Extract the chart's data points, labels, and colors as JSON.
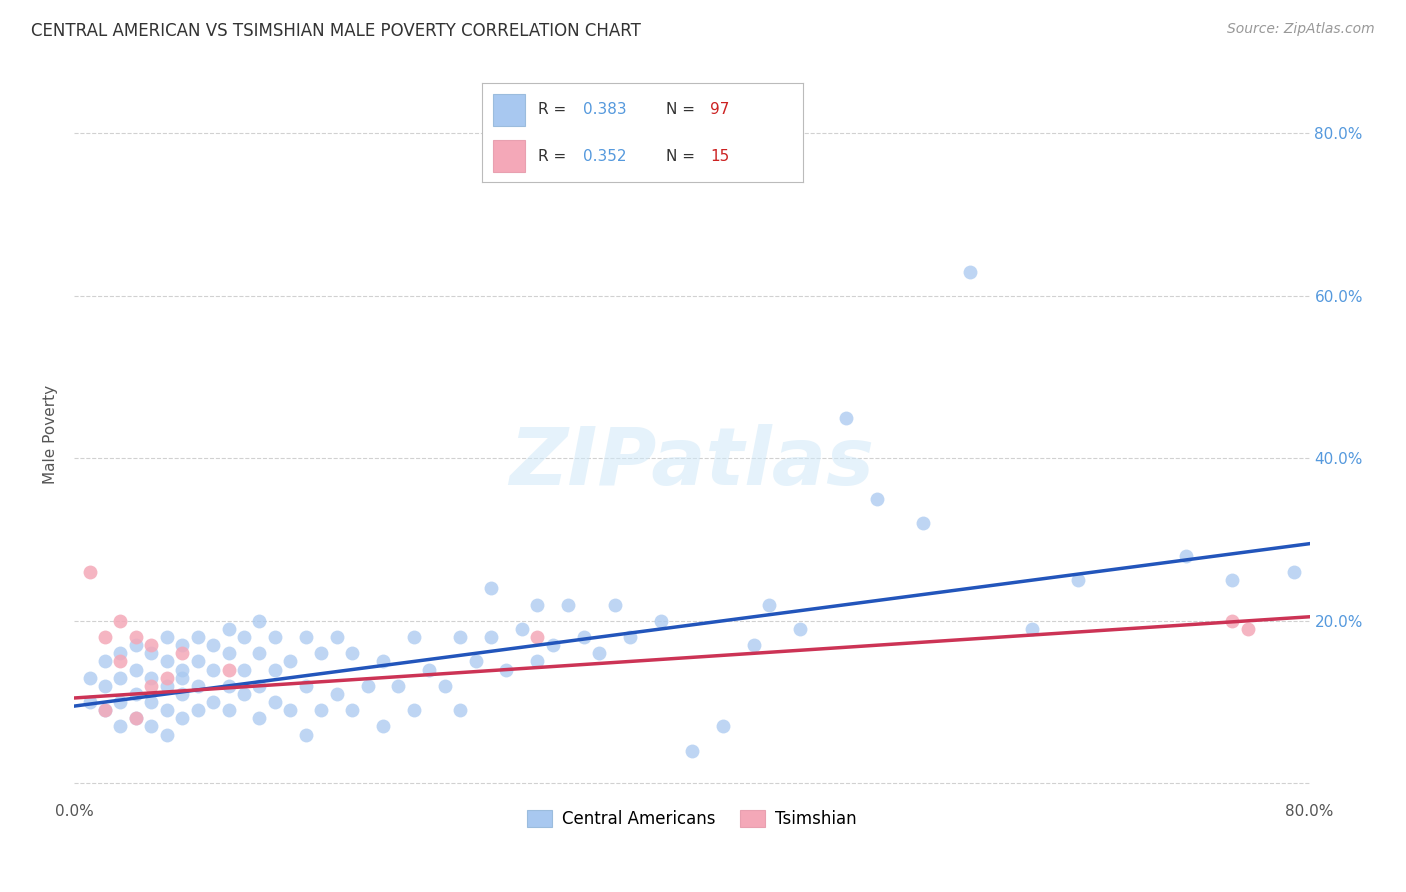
{
  "title": "CENTRAL AMERICAN VS TSIMSHIAN MALE POVERTY CORRELATION CHART",
  "source": "Source: ZipAtlas.com",
  "ylabel": "Male Poverty",
  "xlim": [
    0.0,
    0.8
  ],
  "ylim": [
    -0.02,
    0.88
  ],
  "yticks": [
    0.0,
    0.2,
    0.4,
    0.6,
    0.8
  ],
  "r_blue": 0.383,
  "n_blue": 97,
  "r_pink": 0.352,
  "n_pink": 15,
  "blue_color": "#a8c8f0",
  "pink_color": "#f4a8b8",
  "line_blue": "#2255bb",
  "line_pink": "#cc3355",
  "bg_color": "#ffffff",
  "grid_color": "#cccccc",
  "watermark": "ZIPatlas",
  "blue_scatter_x": [
    0.01,
    0.01,
    0.02,
    0.02,
    0.02,
    0.03,
    0.03,
    0.03,
    0.03,
    0.04,
    0.04,
    0.04,
    0.04,
    0.05,
    0.05,
    0.05,
    0.05,
    0.06,
    0.06,
    0.06,
    0.06,
    0.06,
    0.07,
    0.07,
    0.07,
    0.07,
    0.07,
    0.08,
    0.08,
    0.08,
    0.08,
    0.09,
    0.09,
    0.09,
    0.1,
    0.1,
    0.1,
    0.1,
    0.11,
    0.11,
    0.11,
    0.12,
    0.12,
    0.12,
    0.12,
    0.13,
    0.13,
    0.13,
    0.14,
    0.14,
    0.15,
    0.15,
    0.15,
    0.16,
    0.16,
    0.17,
    0.17,
    0.18,
    0.18,
    0.19,
    0.2,
    0.2,
    0.21,
    0.22,
    0.22,
    0.23,
    0.24,
    0.25,
    0.25,
    0.26,
    0.27,
    0.27,
    0.28,
    0.29,
    0.3,
    0.3,
    0.31,
    0.32,
    0.33,
    0.34,
    0.35,
    0.36,
    0.38,
    0.4,
    0.42,
    0.44,
    0.45,
    0.47,
    0.5,
    0.52,
    0.55,
    0.58,
    0.62,
    0.65,
    0.72,
    0.75,
    0.79
  ],
  "blue_scatter_y": [
    0.1,
    0.13,
    0.09,
    0.12,
    0.15,
    0.07,
    0.1,
    0.13,
    0.16,
    0.08,
    0.11,
    0.14,
    0.17,
    0.07,
    0.1,
    0.13,
    0.16,
    0.06,
    0.09,
    0.12,
    0.15,
    0.18,
    0.08,
    0.11,
    0.14,
    0.17,
    0.13,
    0.09,
    0.12,
    0.15,
    0.18,
    0.1,
    0.14,
    0.17,
    0.09,
    0.12,
    0.16,
    0.19,
    0.11,
    0.14,
    0.18,
    0.08,
    0.12,
    0.16,
    0.2,
    0.1,
    0.14,
    0.18,
    0.09,
    0.15,
    0.06,
    0.12,
    0.18,
    0.09,
    0.16,
    0.11,
    0.18,
    0.09,
    0.16,
    0.12,
    0.07,
    0.15,
    0.12,
    0.09,
    0.18,
    0.14,
    0.12,
    0.09,
    0.18,
    0.15,
    0.18,
    0.24,
    0.14,
    0.19,
    0.15,
    0.22,
    0.17,
    0.22,
    0.18,
    0.16,
    0.22,
    0.18,
    0.2,
    0.04,
    0.07,
    0.17,
    0.22,
    0.19,
    0.45,
    0.35,
    0.32,
    0.63,
    0.19,
    0.25,
    0.28,
    0.25,
    0.26
  ],
  "pink_scatter_x": [
    0.01,
    0.02,
    0.02,
    0.03,
    0.03,
    0.04,
    0.04,
    0.05,
    0.05,
    0.06,
    0.07,
    0.1,
    0.3,
    0.75,
    0.76
  ],
  "pink_scatter_y": [
    0.26,
    0.09,
    0.18,
    0.2,
    0.15,
    0.08,
    0.18,
    0.12,
    0.17,
    0.13,
    0.16,
    0.14,
    0.18,
    0.2,
    0.19
  ],
  "trendline_blue_x0": 0.0,
  "trendline_blue_y0": 0.095,
  "trendline_blue_x1": 0.8,
  "trendline_blue_y1": 0.295,
  "trendline_pink_x0": 0.0,
  "trendline_pink_y0": 0.105,
  "trendline_pink_x1": 0.8,
  "trendline_pink_y1": 0.205
}
